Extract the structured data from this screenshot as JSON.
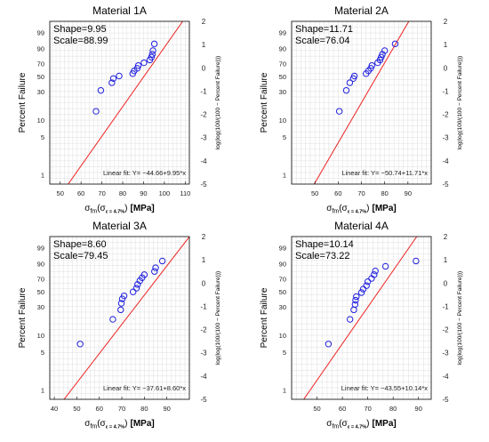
{
  "chart_data": [
    {
      "type": "scatter",
      "title": "Material 1A",
      "annotation_shape": "Shape=9.95",
      "annotation_scale": "Scale=88.99",
      "fit_label": "Linear fit: Y= −44.66+9.95*x",
      "ylabel_left": "Percent Failure",
      "ylabel_right": "log(log(100/(100 − Percent Failure)))",
      "xlabel_main": "σ",
      "xlabel_sub": "fm",
      "xlabel_paren_open": "(σ",
      "xlabel_paren_sub": "ε = 4.7%",
      "xlabel_paren_close": ")",
      "xlabel_unit": "[MPa]",
      "xlim": [
        45,
        112
      ],
      "x_ticks": [
        50,
        60,
        70,
        80,
        90,
        100,
        110
      ],
      "ylim_right": [
        -5,
        2
      ],
      "y_ticks_right": [
        2,
        1,
        0,
        -1,
        -2,
        -3,
        -4,
        -5
      ],
      "y_ticks_left": [
        "99",
        "90",
        "70",
        "50",
        "30",
        "10",
        "5",
        "1"
      ],
      "fit": {
        "intercept": -44.66,
        "slope": 9.95
      },
      "points": [
        {
          "x": 67.2,
          "y": -1.87
        },
        {
          "x": 69.5,
          "y": -0.97
        },
        {
          "x": 74.8,
          "y": -0.64
        },
        {
          "x": 75.5,
          "y": -0.46
        },
        {
          "x": 78.3,
          "y": -0.35
        },
        {
          "x": 84.8,
          "y": -0.25
        },
        {
          "x": 85.5,
          "y": -0.13
        },
        {
          "x": 87.0,
          "y": -0.02
        },
        {
          "x": 87.5,
          "y": 0.1
        },
        {
          "x": 90.2,
          "y": 0.22
        },
        {
          "x": 93.0,
          "y": 0.34
        },
        {
          "x": 93.8,
          "y": 0.46
        },
        {
          "x": 94.2,
          "y": 0.58
        },
        {
          "x": 94.5,
          "y": 0.74
        },
        {
          "x": 95.2,
          "y": 1.03
        }
      ]
    },
    {
      "type": "scatter",
      "title": "Material 2A",
      "annotation_shape": "Shape=11.71",
      "annotation_scale": "Scale=76.04",
      "fit_label": "Linear fit: Y= −50.74+11.71*x",
      "ylabel_left": "Percent Failure",
      "ylabel_right": "log(log(100/(100 − Percent Failure)))",
      "xlabel_main": "σ",
      "xlabel_sub": "fm",
      "xlabel_paren_open": "(σ",
      "xlabel_paren_sub": "ε = 4.7%",
      "xlabel_paren_close": ")",
      "xlabel_unit": "[MPa]",
      "xlim": [
        40,
        100
      ],
      "x_ticks": [
        50,
        60,
        70,
        80,
        90
      ],
      "ylim_right": [
        -5,
        2
      ],
      "y_ticks_right": [
        2,
        1,
        0,
        -1,
        -2,
        -3,
        -4,
        -5
      ],
      "y_ticks_left": [
        "99",
        "90",
        "70",
        "50",
        "30",
        "10",
        "5",
        "1"
      ],
      "fit": {
        "intercept": -50.74,
        "slope": 11.71
      },
      "points": [
        {
          "x": 60.5,
          "y": -1.87
        },
        {
          "x": 63.5,
          "y": -0.97
        },
        {
          "x": 65.0,
          "y": -0.64
        },
        {
          "x": 66.5,
          "y": -0.46
        },
        {
          "x": 67.0,
          "y": -0.35
        },
        {
          "x": 72.0,
          "y": -0.25
        },
        {
          "x": 73.0,
          "y": -0.13
        },
        {
          "x": 74.0,
          "y": -0.02
        },
        {
          "x": 74.5,
          "y": 0.1
        },
        {
          "x": 77.0,
          "y": 0.22
        },
        {
          "x": 78.0,
          "y": 0.34
        },
        {
          "x": 78.5,
          "y": 0.46
        },
        {
          "x": 79.0,
          "y": 0.58
        },
        {
          "x": 80.0,
          "y": 0.74
        },
        {
          "x": 84.5,
          "y": 1.03
        }
      ]
    },
    {
      "type": "scatter",
      "title": "Material 3A",
      "annotation_shape": "Shape=8.60",
      "annotation_scale": "Scale=79.45",
      "fit_label": "Linear fit: Y= −37.61+8.60*x",
      "ylabel_left": "Percent Failure",
      "ylabel_right": "log(log(100/(100 − Percent Failure)))",
      "xlabel_main": "σ",
      "xlabel_sub": "fm",
      "xlabel_paren_open": "(σ",
      "xlabel_paren_sub": "ε = 4.7%",
      "xlabel_paren_close": ")",
      "xlabel_unit": "[MPa]",
      "xlim": [
        38,
        100
      ],
      "x_ticks": [
        40,
        50,
        60,
        70,
        80,
        90
      ],
      "ylim_right": [
        -5,
        2
      ],
      "y_ticks_right": [
        2,
        1,
        0,
        -1,
        -2,
        -3,
        -4,
        -5
      ],
      "y_ticks_left": [
        "99",
        "90",
        "70",
        "50",
        "30",
        "10",
        "5",
        "1"
      ],
      "fit": {
        "intercept": -37.61,
        "slope": 8.6
      },
      "points": [
        {
          "x": 51.5,
          "y": -2.62
        },
        {
          "x": 66.0,
          "y": -1.56
        },
        {
          "x": 69.5,
          "y": -1.15
        },
        {
          "x": 69.8,
          "y": -0.87
        },
        {
          "x": 70.2,
          "y": -0.68
        },
        {
          "x": 71.0,
          "y": -0.55
        },
        {
          "x": 75.0,
          "y": -0.38
        },
        {
          "x": 76.5,
          "y": -0.22
        },
        {
          "x": 77.0,
          "y": -0.06
        },
        {
          "x": 78.0,
          "y": 0.1
        },
        {
          "x": 79.0,
          "y": 0.23
        },
        {
          "x": 80.0,
          "y": 0.36
        },
        {
          "x": 84.5,
          "y": 0.5
        },
        {
          "x": 85.0,
          "y": 0.66
        },
        {
          "x": 88.0,
          "y": 0.95
        }
      ]
    },
    {
      "type": "scatter",
      "title": "Material 4A",
      "annotation_shape": "Shape=10.14",
      "annotation_scale": "Scale=73.22",
      "fit_label": "Linear fit: Y= −43.55+10.14*x",
      "ylabel_left": "Percent Failure",
      "ylabel_right": "log(log(100/(100 − Percent Failure)))",
      "xlabel_main": "σ",
      "xlabel_sub": "fm",
      "xlabel_paren_open": "(σ",
      "xlabel_paren_sub": "ε = 4.7%",
      "xlabel_paren_close": ")",
      "xlabel_unit": "[MPa]",
      "xlim": [
        40,
        95
      ],
      "x_ticks": [
        50,
        60,
        70,
        80,
        90
      ],
      "ylim_right": [
        -5,
        2
      ],
      "y_ticks_right": [
        2,
        1,
        0,
        -1,
        -2,
        -3,
        -4,
        -5
      ],
      "y_ticks_left": [
        "99",
        "90",
        "70",
        "50",
        "30",
        "10",
        "5",
        "1"
      ],
      "fit": {
        "intercept": -43.55,
        "slope": 10.14
      },
      "points": [
        {
          "x": 54.5,
          "y": -2.62
        },
        {
          "x": 63.0,
          "y": -1.56
        },
        {
          "x": 64.5,
          "y": -1.15
        },
        {
          "x": 65.0,
          "y": -0.92
        },
        {
          "x": 65.2,
          "y": -0.74
        },
        {
          "x": 65.5,
          "y": -0.58
        },
        {
          "x": 67.5,
          "y": -0.41
        },
        {
          "x": 68.2,
          "y": -0.26
        },
        {
          "x": 69.5,
          "y": -0.11
        },
        {
          "x": 70.0,
          "y": 0.06
        },
        {
          "x": 71.5,
          "y": 0.2
        },
        {
          "x": 72.5,
          "y": 0.36
        },
        {
          "x": 73.0,
          "y": 0.52
        },
        {
          "x": 77.0,
          "y": 0.72
        },
        {
          "x": 89.0,
          "y": 0.95
        }
      ]
    }
  ],
  "colors": {
    "marker": "#1f1fdd",
    "fit_line": "#ee2222",
    "grid": "#e3e3e3",
    "axis": "#000000"
  }
}
